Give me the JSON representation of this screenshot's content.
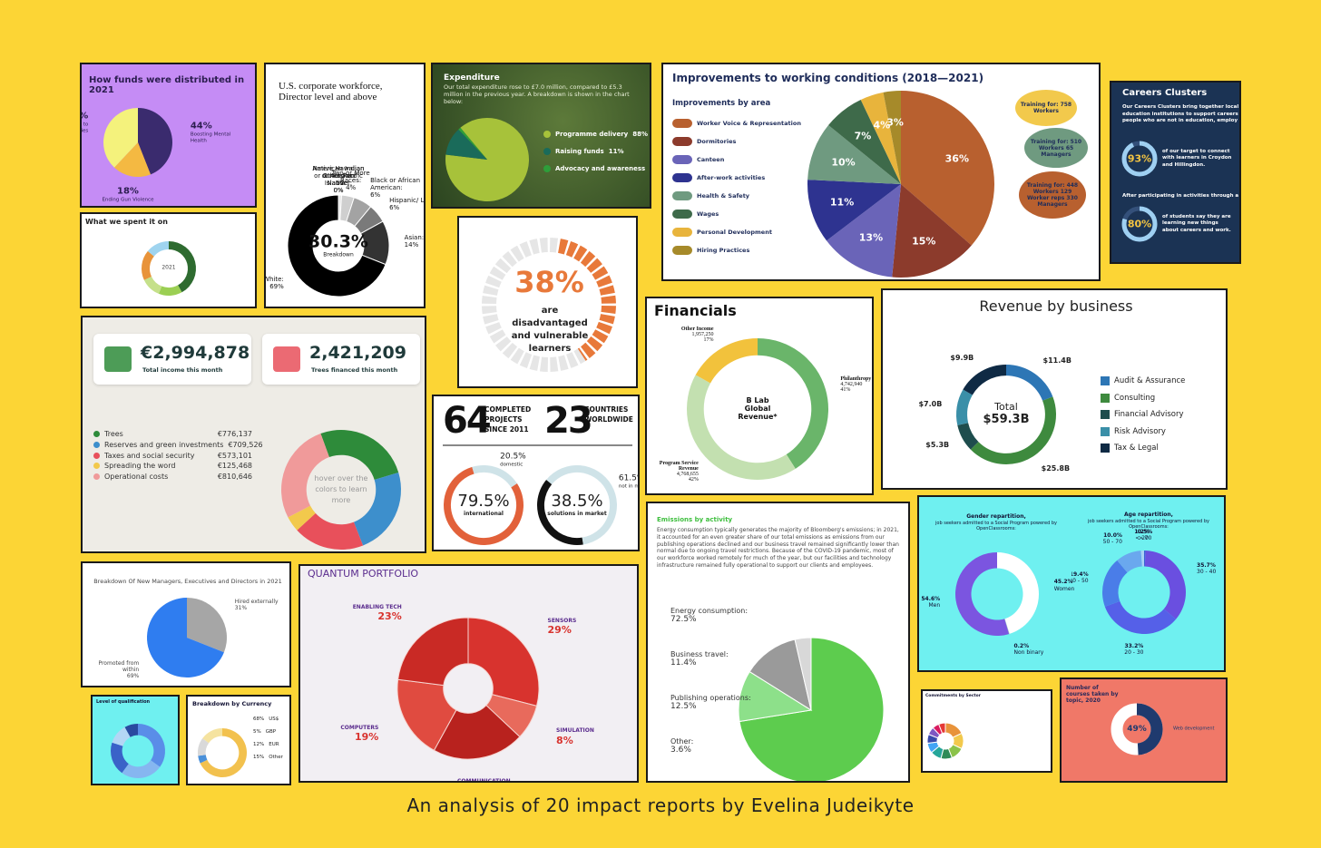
{
  "caption": "An analysis of 20 impact reports by Evelina Judeikyte",
  "chart_data": [
    {
      "type": "pie",
      "title": "How funds were distributed in 2021",
      "categories": [
        "Boosting Mental Health",
        "Ending Gun Violence",
        "Increasing Access to Opportunities"
      ],
      "values": [
        44,
        18,
        38
      ],
      "value_labels": [
        "44%",
        "18%",
        "38%"
      ],
      "colors": [
        "#3a2b6e",
        "#f4b942",
        "#f4f27c"
      ]
    },
    {
      "type": "donut",
      "title": "What we spent it on",
      "center": "2021",
      "categories": [
        null,
        null,
        null,
        null,
        null
      ],
      "values": [
        42,
        14,
        12,
        18,
        14
      ],
      "colors": [
        "#2e6b30",
        "#9bcf53",
        "#c5e08a",
        "#e8933a",
        "#9fd4ef"
      ]
    },
    {
      "type": "donut",
      "title": "U.S. corporate workforce, Director level and above",
      "center": [
        "30.3%",
        "Breakdown"
      ],
      "categories": [
        "Unknown:",
        "Two or More Races:",
        "Black or African American:",
        "Hispanic/ Latino:",
        "Asian:",
        "White:",
        "Native Hawaiian or Other Pacific Islander:",
        "American Indian or Alaskan Native:"
      ],
      "values": [
        1,
        4,
        6,
        6,
        14,
        69,
        0,
        0
      ],
      "value_labels": [
        "1%",
        "4%",
        "6%",
        "6%",
        "14%",
        "69%",
        "0%",
        "0%"
      ],
      "colors": [
        "#e6e6e6",
        "#cfcfcf",
        "#a3a3a3",
        "#7a7a7a",
        "#333333",
        "#000000",
        "#bbbbbb",
        "#dddddd"
      ]
    },
    {
      "type": "pie",
      "title": "Expenditure",
      "subtitle": "Our total expenditure rose to £7.0 million, compared to £5.3 million in the previous year. A breakdown is shown in the chart below:",
      "categories": [
        "Programme delivery",
        "Raising funds",
        "Advocacy and awareness"
      ],
      "values": [
        88,
        11,
        1
      ],
      "value_labels": [
        "88%",
        "11%",
        "1%"
      ],
      "colors": [
        "#a7c23a",
        "#1a6b5a",
        "#2e9e3a"
      ]
    },
    {
      "type": "ring",
      "values": [
        38
      ],
      "value_labels": [
        "38%"
      ],
      "subtitle": "are disadvantaged and vulnerable learners",
      "colors": [
        "#e8793a",
        "#e6e6e6"
      ]
    },
    {
      "type": "stat",
      "stats": [
        {
          "value": 64,
          "label": "COMPLETED PROJECTS SINCE 2011"
        },
        {
          "value": 23,
          "label": "COUNTRIES WORLDWIDE"
        }
      ]
    },
    {
      "type": "donut",
      "categories": [
        "international",
        "domestic"
      ],
      "values": [
        79.5,
        20.5
      ],
      "value_labels": [
        "79.5%",
        "20.5%"
      ],
      "colors": [
        "#e2613a",
        "#cfe3e8"
      ]
    },
    {
      "type": "donut",
      "categories": [
        "solutions in market",
        "not in market"
      ],
      "values": [
        38.5,
        61.5
      ],
      "value_labels": [
        "38.5%",
        "61.5%"
      ],
      "colors": [
        "#111111",
        "#cfe3e8"
      ]
    },
    {
      "type": "pie",
      "title": "Improvements to working conditions (2018—2021)",
      "subtitle": "Improvements by area",
      "categories": [
        "Worker Voice & Representation",
        "Dormitories",
        "Canteen",
        "After-work activities",
        "Health & Safety",
        "Wages",
        "Personal Development",
        "Hiring Practices"
      ],
      "values": [
        36,
        15,
        13,
        11,
        10,
        7,
        4,
        3
      ],
      "value_labels": [
        "36%",
        "15%",
        "13%",
        "11%",
        "10%",
        "7%",
        "4%",
        "3%"
      ],
      "colors": [
        "#b8602f",
        "#8c3b2c",
        "#6a64b8",
        "#2e3390",
        "#6f9a80",
        "#3e6a4a",
        "#e8b43c",
        "#a68a2a"
      ],
      "notes": [
        "Training for: 758 Workers",
        "Training for: 510 Workers 65 Managers",
        "Training for: 448 Workers 129 Worker reps 330 Managers"
      ]
    },
    {
      "type": "gauge",
      "title": "Careers Clusters",
      "subtitle": "Our Careers Clusters bring together local education institutions to support careers people who are not in education, employ",
      "categories": [
        "of our target to connect with learners in Croydon and Hillingdon.",
        "of students say they are learning new things about careers and work."
      ],
      "values": [
        93,
        80
      ],
      "value_labels": [
        "93%",
        "80%"
      ],
      "colors": [
        "#9fd0f2",
        "#34507a"
      ],
      "notes": [
        "After participating in activities through a c"
      ]
    },
    {
      "type": "donut",
      "title": "Financials",
      "center": [
        "B Lab",
        "Global",
        "Revenue*"
      ],
      "categories": [
        "Philanthropy",
        "Program Service Revenue",
        "Other Income"
      ],
      "values": [
        41,
        42,
        17
      ],
      "value_labels": [
        "41%",
        "42%",
        "17%"
      ],
      "details": [
        "4,742,940",
        "4,768,655",
        "1,957,250"
      ],
      "colors": [
        "#6ab56a",
        "#c3e0b0",
        "#f2c23c"
      ]
    },
    {
      "type": "donut",
      "title": "Revenue by business",
      "center": [
        "Total",
        "$59.3B"
      ],
      "categories": [
        "Audit & Assurance",
        "Consulting",
        "Financial Advisory",
        "Risk Advisory",
        "Tax & Legal"
      ],
      "values": [
        11.4,
        25.8,
        5.3,
        7.0,
        9.9
      ],
      "value_labels": [
        "$11.4B",
        "$25.8B",
        "$5.3B",
        "$7.0B",
        "$9.9B"
      ],
      "colors": [
        "#2d76b5",
        "#3e8a3e",
        "#1e4d4d",
        "#3a8fa8",
        "#0f2a44"
      ]
    },
    {
      "type": "donut",
      "cards": [
        {
          "text": "€2,994,878",
          "label": "Total income this month"
        },
        {
          "text": "2,421,209",
          "label": "Trees financed this month"
        }
      ],
      "center": "hover over the colors to learn more",
      "categories": [
        "Trees",
        "Reserves and green investments",
        "Taxes and social security",
        "Spreading the word",
        "Operational costs"
      ],
      "values": [
        776137,
        709526,
        573101,
        125468,
        810646
      ],
      "value_labels": [
        "€776,137",
        "€709,526",
        "€573,101",
        "€125,468",
        "€810,646"
      ],
      "colors": [
        "#2e8b3a",
        "#3d8fcc",
        "#e8505b",
        "#f2c94c",
        "#f09a9a"
      ]
    },
    {
      "type": "pie",
      "title": "Breakdown Of New Managers, Executives and Directors in 2021",
      "categories": [
        "Hired externally",
        "Promoted from within"
      ],
      "values": [
        31,
        69
      ],
      "value_labels": [
        "31%",
        "69%"
      ],
      "colors": [
        "#a6a6a6",
        "#2f7df0"
      ]
    },
    {
      "type": "donut",
      "title": "Level of qualification",
      "categories": [
        null,
        null,
        null,
        null,
        null
      ],
      "values": [
        35,
        25,
        20,
        12,
        8
      ],
      "colors": [
        "#5a8de8",
        "#86b6f0",
        "#3a62c8",
        "#b4d6f5",
        "#2a4aa0"
      ]
    },
    {
      "type": "donut",
      "title": "Breakdown by Currency",
      "categories": [
        "US$",
        "GBP",
        "EUR",
        "Other"
      ],
      "values": [
        68,
        5,
        12,
        15
      ],
      "value_labels": [
        "68%",
        "5%",
        "12%",
        "15%"
      ],
      "colors": [
        "#f2c14e",
        "#4a90d9",
        "#d9d9d9",
        "#f5e3a0"
      ]
    },
    {
      "type": "donut",
      "title": "QUANTUM PORTFOLIO",
      "categories": [
        "SENSORS",
        "SIMULATION",
        "COMMUNICATION",
        "COMPUTERS",
        "ENABLING TECH"
      ],
      "values": [
        29,
        8,
        21,
        19,
        23
      ],
      "value_labels": [
        "29%",
        "8%",
        "21%",
        "19%",
        "23%"
      ],
      "colors": [
        "#d8332e",
        "#e86a5c",
        "#b8221e",
        "#e04b40",
        "#c92a25"
      ]
    },
    {
      "type": "pie",
      "title": "Emissions by activity",
      "subtitle": "Energy consumption typically generates the majority of Bloomberg's emissions; in 2021, it accounted for an even greater share of our total emissions as emissions from our publishing operations declined and our business travel remained significantly lower than normal due to ongoing travel restrictions. Because of the COVID-19 pandemic, most of our workforce worked remotely for much of the year, but our facilities and technology infrastructure remained fully operational to support our clients and employees.",
      "categories": [
        "Energy consumption:",
        "Business travel:",
        "Publishing operations:",
        "Other:"
      ],
      "values": [
        72.5,
        11.4,
        12.5,
        3.6
      ],
      "value_labels": [
        "72.5%",
        "11.4%",
        "12.5%",
        "3.6%"
      ],
      "colors": [
        "#5dcc4e",
        "#8de08a",
        "#9a9a9a",
        "#d8d8d8"
      ]
    },
    {
      "type": "donut",
      "title": "Gender repartition,",
      "subtitle": "job seekers admitted to a Social Program powered by OpenClassrooms:",
      "categories": [
        "Women",
        "Non binary",
        "Men"
      ],
      "values": [
        45.2,
        0.2,
        54.6
      ],
      "value_labels": [
        "45.2%",
        "0.2%",
        "54.6%"
      ],
      "colors": [
        "#ffffff",
        "#bbbbbb",
        "#7b55e0"
      ]
    },
    {
      "type": "donut",
      "title": "Age repartition,",
      "subtitle": "job seekers admitted to a Social Program powered by OpenClassrooms:",
      "categories": [
        "> 70",
        "30 - 40",
        "20 - 30",
        "40 - 50",
        "50 - 70",
        "< 20"
      ],
      "values": [
        0.5,
        35.7,
        33.2,
        19.4,
        10.0,
        1.2
      ],
      "value_labels": [
        "0.5%",
        "35.7%",
        "33.2%",
        "19.4%",
        "10.0%",
        "1.2%"
      ],
      "colors": [
        "#3a63d4",
        "#6a4fe0",
        "#5560e8",
        "#4a7de8",
        "#6aa8ee",
        "#a8d2f5"
      ]
    },
    {
      "type": "donut",
      "title": "Commitments by Sector",
      "categories": [
        null,
        null,
        null,
        null,
        null,
        null,
        null,
        null,
        null,
        null
      ],
      "values": [
        18,
        14,
        12,
        10,
        10,
        9,
        8,
        7,
        6,
        6
      ],
      "colors": [
        "#e8933a",
        "#f2c94c",
        "#8bc34a",
        "#2e8b57",
        "#26a69a",
        "#42a5f5",
        "#3949ab",
        "#7e57c2",
        "#d81b60",
        "#e53935"
      ]
    },
    {
      "type": "gauge",
      "title": "Number of courses taken by topic, 2020",
      "categories": [
        "Web development"
      ],
      "values": [
        49
      ],
      "value_labels": [
        "49%"
      ],
      "colors": [
        "#1f3a6e",
        "#ffffff"
      ]
    }
  ]
}
